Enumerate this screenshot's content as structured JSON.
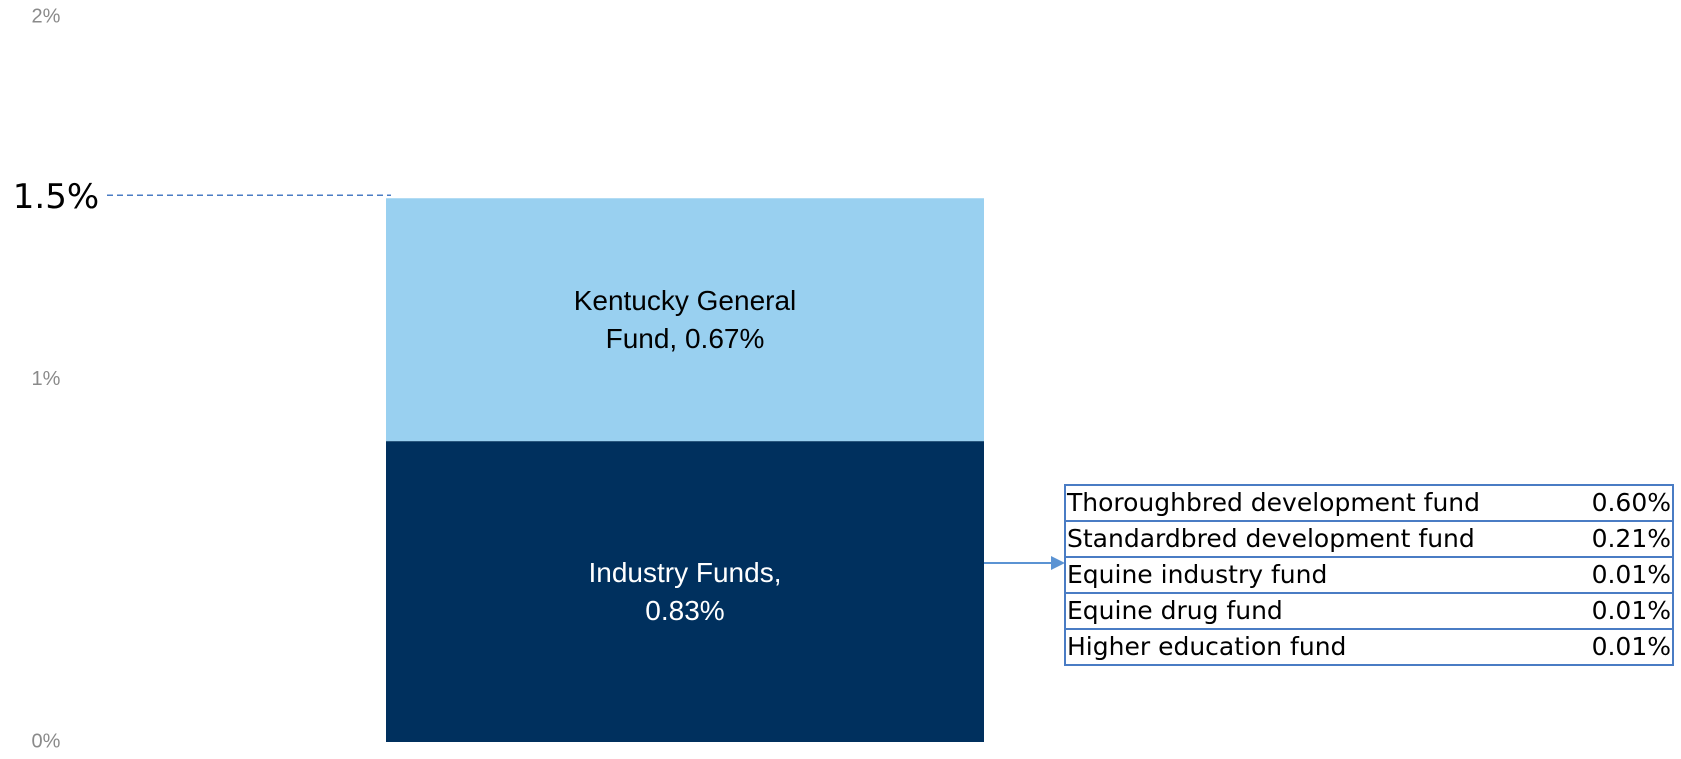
{
  "chart_data": {
    "type": "stacked_bar",
    "categories": [
      null
    ],
    "series": [
      {
        "name": "Industry Funds",
        "color": "#00305e",
        "text_color": "#ffffff",
        "values": [
          0.83
        ],
        "value_labels": [
          "Industry Funds, 0.83%"
        ]
      },
      {
        "name": "Kentucky General Fund",
        "color": "#99d0f0",
        "text_color": "#000000",
        "values": [
          0.67
        ],
        "value_labels": [
          "Kentucky General Fund, 0.67%"
        ]
      }
    ],
    "ylim": [
      0,
      2
    ],
    "yticks": [
      {
        "value": 0,
        "label": "0%"
      },
      {
        "value": 1,
        "label": "1%"
      },
      {
        "value": 2,
        "label": "2%"
      }
    ],
    "grid": false,
    "annotations": [
      {
        "value": 1.5,
        "label": "1.5%"
      }
    ],
    "breakdown": {
      "rows": [
        [
          "Thoroughbred development fund",
          "0.60%"
        ],
        [
          "Standardbred development fund",
          "0.21%"
        ],
        [
          "Equine industry fund",
          "0.01%"
        ],
        [
          "Equine drug fund",
          "0.01%"
        ],
        [
          "Higher education fund",
          "0.01%"
        ]
      ]
    }
  }
}
